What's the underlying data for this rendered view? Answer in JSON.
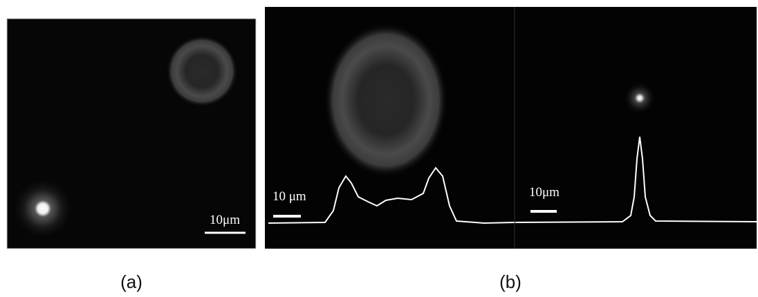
{
  "panels": [
    {
      "caption": "(a)",
      "scale_bars": [
        "10μm"
      ]
    },
    {
      "caption": "(b)",
      "scale_bars": [
        "10 μm",
        "10μm"
      ]
    }
  ]
}
